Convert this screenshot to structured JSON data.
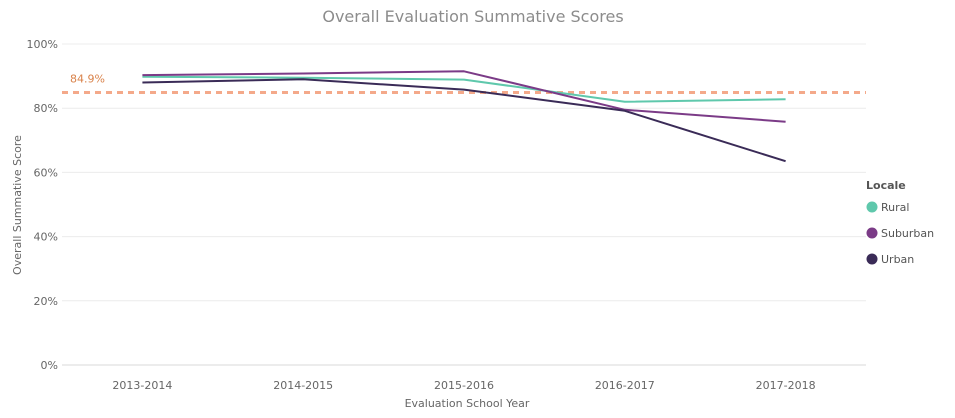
{
  "chart_data": {
    "type": "line",
    "title": "Overall Evaluation Summative Scores",
    "xlabel": "Evaluation School Year",
    "ylabel": "Overall Summative Score",
    "categories": [
      "2013-2014",
      "2014-2015",
      "2015-2016",
      "2016-2017",
      "2017-2018"
    ],
    "y_ticks": [
      "0%",
      "20%",
      "40%",
      "60%",
      "80%",
      "100%"
    ],
    "ylim": [
      0,
      100
    ],
    "grid": true,
    "legend": {
      "title": "Locale",
      "placement": "right"
    },
    "series": [
      {
        "name": "Rural",
        "color": "#5fc8ac",
        "values": [
          89.8,
          89.5,
          88.9,
          82.0,
          82.8
        ]
      },
      {
        "name": "Suburban",
        "color": "#7b3b87",
        "values": [
          90.3,
          90.8,
          91.5,
          79.5,
          75.8
        ]
      },
      {
        "name": "Urban",
        "color": "#3a2b57",
        "values": [
          88.0,
          89.0,
          85.8,
          79.2,
          63.5
        ]
      }
    ],
    "reference_line": {
      "value": 84.9,
      "label": "84.9%",
      "color": "#f4a98a",
      "style": "dashed"
    }
  }
}
